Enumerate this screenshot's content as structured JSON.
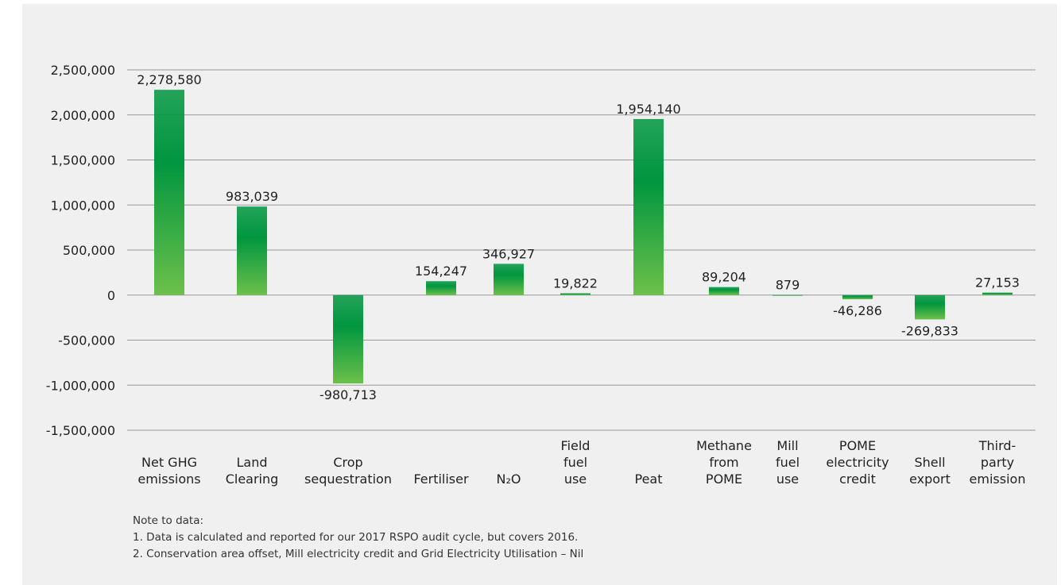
{
  "chart_data": {
    "type": "bar",
    "categories": [
      [
        "Net GHG",
        "emissions"
      ],
      [
        "Land",
        "Clearing"
      ],
      [
        "Crop",
        "sequestration"
      ],
      [
        "Fertiliser"
      ],
      [
        "N₂O"
      ],
      [
        "Field",
        "fuel",
        "use"
      ],
      [
        "Peat"
      ],
      [
        "Methane",
        "from",
        "POME"
      ],
      [
        "Mill",
        "fuel",
        "use"
      ],
      [
        "POME",
        "electricity",
        "credit"
      ],
      [
        "Shell",
        "export"
      ],
      [
        "Third-",
        "party",
        "emission"
      ]
    ],
    "values": [
      2278580,
      983039,
      -980713,
      154247,
      346927,
      19822,
      1954140,
      89204,
      879,
      -46286,
      -269833,
      27153
    ],
    "value_labels": [
      "2,278,580",
      "983,039",
      "-980,713",
      "154,247",
      "346,927",
      "19,822",
      "1,954,140",
      "89,204",
      "879",
      "-46,286",
      "-269,833",
      "27,153"
    ],
    "color": "#00963f",
    "gradient_to": "#6cc04a",
    "ylim": [
      -1500000,
      2500000
    ],
    "yticks": [
      {
        "value": -1500000,
        "label": "-1,500,000"
      },
      {
        "value": -1000000,
        "label": "-1,000,000"
      },
      {
        "value": -500000,
        "label": "-500,000"
      },
      0,
      {
        "value": 500000,
        "label": "500,000"
      },
      {
        "value": 1000000,
        "label": "1,000,000"
      },
      {
        "value": 1500000,
        "label": "1,500,000"
      },
      {
        "value": 2000000,
        "label": "2,000,000"
      },
      {
        "value": 2500000,
        "label": "2,500,000"
      }
    ],
    "grid": true,
    "notes": [
      "Note to data:",
      "1.  Data is calculated and reported for our 2017 RSPO audit cycle, but covers 2016.",
      "2.  Conservation area offset, Mill electricity credit and Grid Electricity Utilisation – Nil"
    ]
  }
}
